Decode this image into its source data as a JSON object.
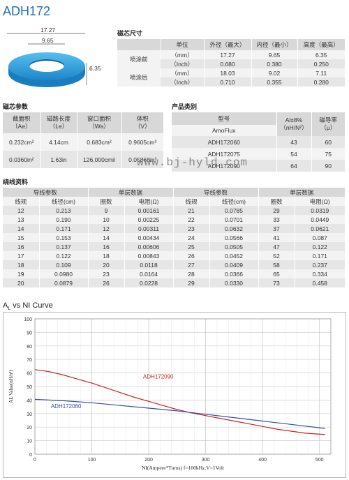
{
  "title": "ADH172",
  "ring": {
    "od": "17.27",
    "id": "9.65",
    "h": "6.35",
    "color": "#2e9fdd"
  },
  "dimensions": {
    "section": "磁芯尺寸",
    "headers": [
      "单位",
      "外径（最大）",
      "内径（最小）",
      "高度（最高）"
    ],
    "groups": [
      {
        "label": "喷涂前",
        "rows": [
          [
            "（mm）",
            "17.27",
            "9.65",
            "6.35"
          ],
          [
            "（Inch）",
            "0.680",
            "0.380",
            "0.250"
          ]
        ]
      },
      {
        "label": "喷涂后",
        "rows": [
          [
            "（mm）",
            "18.03",
            "9.02",
            "7.11"
          ],
          [
            "（Inch）",
            "0.710",
            "0.355",
            "0.280"
          ]
        ]
      }
    ]
  },
  "core_params": {
    "section": "磁芯参数",
    "headers": [
      [
        "截面积",
        "（Ae）"
      ],
      [
        "磁路长度",
        "（Le）"
      ],
      [
        "窗口面积",
        "（Wa）"
      ],
      [
        "体积",
        "（V）"
      ]
    ],
    "rows": [
      [
        "0.232cm²",
        "4.14cm",
        "0.683cm²",
        "0.9605cm³"
      ],
      [
        "0.0360in²",
        "1.63in",
        "126,000cmil",
        "0.05868in³"
      ]
    ]
  },
  "products": {
    "section": "产品类别",
    "headers": [
      [
        "型号"
      ],
      [
        "Al±8%",
        "（nH/N²）"
      ],
      [
        "磁导率",
        "（μ）"
      ]
    ],
    "brand": "AmoFlux",
    "rows": [
      [
        "ADH172060",
        "43",
        "60"
      ],
      [
        "ADH172075",
        "54",
        "75"
      ],
      [
        "ADH172090",
        "64",
        "90"
      ]
    ]
  },
  "watermark": "www.bj-hyld.com",
  "winding": {
    "section": "绕线资料",
    "group_headers": [
      "导线参数",
      "单层数据",
      "导线参数",
      "单层数据"
    ],
    "sub_headers": [
      "线规",
      "线径(cm)",
      "圈数",
      "电阻(Ω)",
      "线规",
      "线径(cm)",
      "圈数",
      "电阻(Ω)"
    ],
    "rows": [
      [
        "12",
        "0.213",
        "9",
        "0.00161",
        "21",
        "0.0785",
        "29",
        "0.0319"
      ],
      [
        "13",
        "0.190",
        "10",
        "0.00225",
        "22",
        "0.0701",
        "33",
        "0.0449"
      ],
      [
        "14",
        "0.171",
        "12",
        "0.00311",
        "23",
        "0.0632",
        "37",
        "0.0621"
      ],
      [
        "15",
        "0.153",
        "14",
        "0.00434",
        "24",
        "0.0566",
        "41",
        "0.087"
      ],
      [
        "16",
        "0.137",
        "16",
        "0.00606",
        "25",
        "0.0505",
        "47",
        "0.122"
      ],
      [
        "17",
        "0.122",
        "18",
        "0.00843",
        "26",
        "0.0452",
        "52",
        "0.171"
      ],
      [
        "18",
        "0.109",
        "20",
        "0.0118",
        "27",
        "0.0409",
        "58",
        "0.237"
      ],
      [
        "19",
        "0.0980",
        "23",
        "0.0164",
        "28",
        "0.0366",
        "65",
        "0.334"
      ],
      [
        "20",
        "0.0879",
        "26",
        "0.0228",
        "29",
        "0.0330",
        "73",
        "0.458"
      ]
    ]
  },
  "chart_data": {
    "type": "line",
    "title": "A<sub>L</sub> vs NI Curve",
    "title_text": "AL vs NI Curve",
    "xlabel": "NI(Ampere*Turns)  f=100kHz,V=1Volt",
    "ylabel": "AL Value(nH/n²)",
    "xlim": [
      0,
      520
    ],
    "ylim": [
      0,
      100
    ],
    "xticks": [
      0,
      100,
      200,
      300,
      400,
      500
    ],
    "yticks": [
      0,
      10,
      20,
      30,
      40,
      50,
      60,
      70,
      80,
      90,
      100
    ],
    "grid": true,
    "series": [
      {
        "name": "ADH172090",
        "color": "#cc2222",
        "x": [
          0,
          25,
          50,
          75,
          100,
          125,
          150,
          175,
          200,
          225,
          250,
          275,
          300,
          325,
          350,
          375,
          400,
          425,
          450,
          475,
          510
        ],
        "y": [
          62.5,
          61,
          58.5,
          55.5,
          52.5,
          49,
          45.5,
          42,
          39,
          36,
          33,
          30.5,
          28.5,
          26.5,
          24.5,
          22.5,
          20.5,
          18.5,
          17,
          15.5,
          14.5
        ]
      },
      {
        "name": "ADH172060",
        "color": "#334fa0",
        "x": [
          0,
          50,
          100,
          150,
          200,
          250,
          300,
          350,
          400,
          450,
          510
        ],
        "y": [
          40.5,
          39.5,
          38,
          36,
          34,
          32,
          29.5,
          27,
          24.5,
          22,
          19
        ]
      }
    ]
  }
}
